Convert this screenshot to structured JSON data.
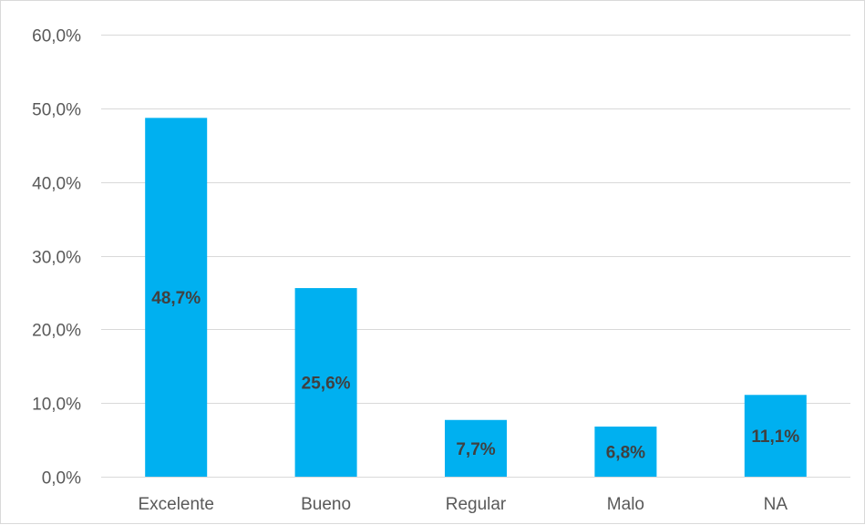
{
  "chart_data": {
    "type": "bar",
    "categories": [
      "Excelente",
      "Bueno",
      "Regular",
      "Malo",
      "NA"
    ],
    "values": [
      48.7,
      25.6,
      7.7,
      6.8,
      11.1
    ],
    "data_labels": [
      "48,7%",
      "25,6%",
      "7,7%",
      "6,8%",
      "11,1%"
    ],
    "y_ticks": [
      0,
      10,
      20,
      30,
      40,
      50,
      60
    ],
    "y_tick_labels": [
      "0,0%",
      "10,0%",
      "20,0%",
      "30,0%",
      "40,0%",
      "50,0%",
      "60,0%"
    ],
    "ylim": [
      0,
      60
    ],
    "grid": true,
    "legend": "none",
    "title": "",
    "xlabel": "",
    "ylabel": "",
    "colors": {
      "bar": "#00b0f0",
      "grid": "#d9d9d9",
      "label": "#595959",
      "data_label": "#404040"
    }
  }
}
